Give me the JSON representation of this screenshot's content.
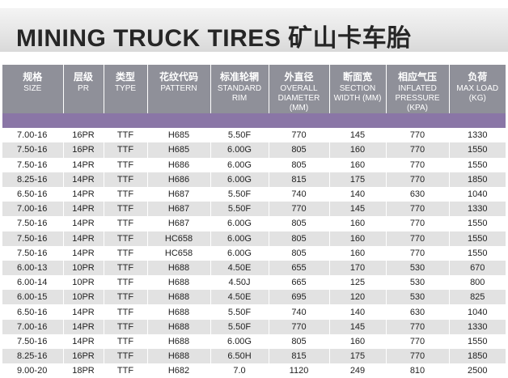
{
  "title": "MINING TRUCK TIRES 矿山卡车胎",
  "columns": [
    {
      "cn": "规格",
      "en": "SIZE"
    },
    {
      "cn": "层级",
      "en": "PR"
    },
    {
      "cn": "类型",
      "en": "TYPE"
    },
    {
      "cn": "花纹代码",
      "en": "PATTERN"
    },
    {
      "cn": "标准轮辋",
      "en": "STANDARD RIM"
    },
    {
      "cn": "外直径",
      "en": "OVERALL DIAMETER (MM)"
    },
    {
      "cn": "断面宽",
      "en": "SECTION WIDTH (MM)"
    },
    {
      "cn": "相应气压",
      "en": "INFLATED PRESSURE (KPA)"
    },
    {
      "cn": "负荷",
      "en": "MAX LOAD (KG)"
    }
  ],
  "rows": [
    [
      "7.00-16",
      "16PR",
      "TTF",
      "H685",
      "5.50F",
      "770",
      "145",
      "770",
      "1330"
    ],
    [
      "7.50-16",
      "16PR",
      "TTF",
      "H685",
      "6.00G",
      "805",
      "160",
      "770",
      "1550"
    ],
    [
      "7.50-16",
      "14PR",
      "TTF",
      "H686",
      "6.00G",
      "805",
      "160",
      "770",
      "1550"
    ],
    [
      "8.25-16",
      "14PR",
      "TTF",
      "H686",
      "6.00G",
      "815",
      "175",
      "770",
      "1850"
    ],
    [
      "6.50-16",
      "14PR",
      "TTF",
      "H687",
      "5.50F",
      "740",
      "140",
      "630",
      "1040"
    ],
    [
      "7.00-16",
      "14PR",
      "TTF",
      "H687",
      "5.50F",
      "770",
      "145",
      "770",
      "1330"
    ],
    [
      "7.50-16",
      "14PR",
      "TTF",
      "H687",
      "6.00G",
      "805",
      "160",
      "770",
      "1550"
    ],
    [
      "7.50-16",
      "14PR",
      "TTF",
      "HC658",
      "6.00G",
      "805",
      "160",
      "770",
      "1550"
    ],
    [
      "7.50-16",
      "14PR",
      "TTF",
      "HC658",
      "6.00G",
      "805",
      "160",
      "770",
      "1550"
    ],
    [
      "6.00-13",
      "10PR",
      "TTF",
      "H688",
      "4.50E",
      "655",
      "170",
      "530",
      "670"
    ],
    [
      "6.00-14",
      "10PR",
      "TTF",
      "H688",
      "4.50J",
      "665",
      "125",
      "530",
      "800"
    ],
    [
      "6.00-15",
      "10PR",
      "TTF",
      "H688",
      "4.50E",
      "695",
      "120",
      "530",
      "825"
    ],
    [
      "6.50-16",
      "14PR",
      "TTF",
      "H688",
      "5.50F",
      "740",
      "140",
      "630",
      "1040"
    ],
    [
      "7.00-16",
      "14PR",
      "TTF",
      "H688",
      "5.50F",
      "770",
      "145",
      "770",
      "1330"
    ],
    [
      "7.50-16",
      "14PR",
      "TTF",
      "H688",
      "6.00G",
      "805",
      "160",
      "770",
      "1550"
    ],
    [
      "8.25-16",
      "16PR",
      "TTF",
      "H688",
      "6.50H",
      "815",
      "175",
      "770",
      "1850"
    ],
    [
      "9.00-20",
      "18PR",
      "TTF",
      "H682",
      "7.0",
      "1120",
      "249",
      "810",
      "2500"
    ]
  ]
}
